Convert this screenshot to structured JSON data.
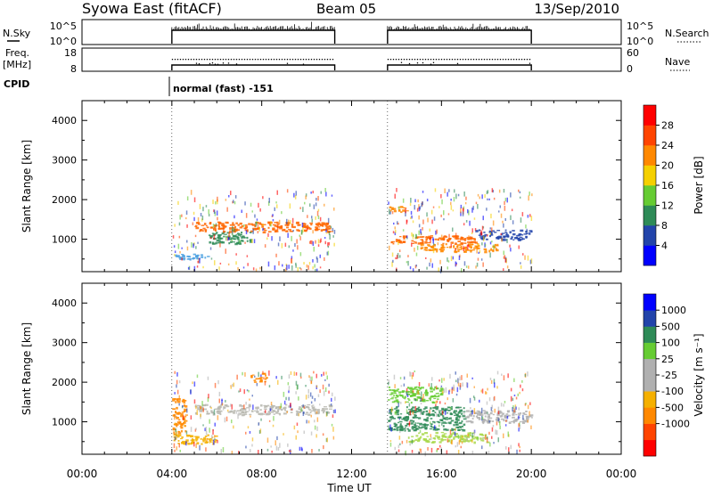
{
  "header": {
    "title": "Syowa East (fitACF)",
    "beam": "Beam 05",
    "date": "13/Sep/2010"
  },
  "status_panels": {
    "nsky_label": "N.Sky",
    "nsearch_label": "N.Search",
    "nsky_ticks": [
      "10^5",
      "10^0"
    ],
    "nsearch_ticks": [
      "10^5",
      "10^0"
    ],
    "freq_label_line1": "Freq.",
    "freq_label_line2": "[MHz]",
    "freq_ticks": [
      "18",
      "8"
    ],
    "nave_label": "Nave",
    "nave_ticks": [
      "60",
      "0"
    ],
    "cpid_label": "CPID",
    "cpid_text": "normal (fast) -151"
  },
  "chart_data": [
    {
      "type": "heatmap",
      "name": "power-panel",
      "ylabel": "Slant Range [km]",
      "xlim": [
        0,
        24
      ],
      "ylim": [
        180,
        4500
      ],
      "yticks": [
        1000,
        2000,
        3000,
        4000
      ],
      "colorbar": {
        "label": "Power [dB]",
        "colors": [
          "#0000ff",
          "#2244aa",
          "#2e8b57",
          "#66cc33",
          "#f5d000",
          "#ff8800",
          "#ff4400",
          "#ff0000"
        ],
        "ticks": [
          "4",
          "8",
          "12",
          "16",
          "20",
          "24",
          "28"
        ]
      },
      "operating_periods": [
        [
          4.0,
          11.25
        ],
        [
          13.6,
          20.0
        ]
      ],
      "scatter_bands": [
        {
          "t0": 4.0,
          "t1": 5.6,
          "r0": 500,
          "r1": 650,
          "color": "#4aa0e0"
        },
        {
          "t0": 5.6,
          "t1": 7.5,
          "r0": 900,
          "r1": 1200,
          "color": "#2e8b57"
        },
        {
          "t0": 5.0,
          "t1": 11.1,
          "r0": 1200,
          "r1": 1450,
          "color": "#ff6600"
        },
        {
          "t0": 13.6,
          "t1": 14.5,
          "r0": 1700,
          "r1": 1850,
          "color": "#ff8800"
        },
        {
          "t0": 13.6,
          "t1": 17.5,
          "r0": 900,
          "r1": 1100,
          "color": "#ff6600"
        },
        {
          "t0": 15.0,
          "t1": 18.5,
          "r0": 700,
          "r1": 900,
          "color": "#ff8800"
        },
        {
          "t0": 17.5,
          "t1": 20.0,
          "r0": 1000,
          "r1": 1250,
          "color": "#2244aa"
        }
      ]
    },
    {
      "type": "heatmap",
      "name": "velocity-panel",
      "ylabel": "Slant Range [km]",
      "xlabel": "Time UT",
      "xlim": [
        0,
        24
      ],
      "ylim": [
        180,
        4500
      ],
      "xticks": [
        "00:00",
        "04:00",
        "08:00",
        "12:00",
        "16:00",
        "20:00",
        "00:00"
      ],
      "yticks": [
        1000,
        2000,
        3000,
        4000
      ],
      "colorbar": {
        "label": "Velocity [m s⁻¹]",
        "colors": [
          "#ff0000",
          "#ff4400",
          "#ff8800",
          "#f5b000",
          "#b0b0b0",
          "#b0b0b0",
          "#66cc33",
          "#2e8b57",
          "#2244aa",
          "#0000ff"
        ],
        "ticks": [
          "1000",
          "500",
          "100",
          "25",
          "-25",
          "-100",
          "-500",
          "-1000"
        ]
      },
      "operating_periods": [
        [
          4.0,
          11.25
        ],
        [
          13.6,
          20.0
        ]
      ],
      "scatter_bands": [
        {
          "t0": 4.0,
          "t1": 6.0,
          "r0": 450,
          "r1": 700,
          "color": "#f5b000"
        },
        {
          "t0": 4.0,
          "t1": 4.6,
          "r0": 700,
          "r1": 1600,
          "color": "#ff8800"
        },
        {
          "t0": 5.0,
          "t1": 11.1,
          "r0": 1200,
          "r1": 1450,
          "color": "#b8b8b0"
        },
        {
          "t0": 7.5,
          "t1": 8.2,
          "r0": 2000,
          "r1": 2250,
          "color": "#ff8800"
        },
        {
          "t0": 13.6,
          "t1": 17.0,
          "r0": 800,
          "r1": 1400,
          "color": "#2e8b57"
        },
        {
          "t0": 13.6,
          "t1": 16.0,
          "r0": 1500,
          "r1": 1900,
          "color": "#66cc33"
        },
        {
          "t0": 14.5,
          "t1": 18.0,
          "r0": 500,
          "r1": 750,
          "color": "#a8d84a"
        },
        {
          "t0": 17.0,
          "t1": 20.0,
          "r0": 1000,
          "r1": 1300,
          "color": "#b0b0b0"
        }
      ]
    }
  ]
}
